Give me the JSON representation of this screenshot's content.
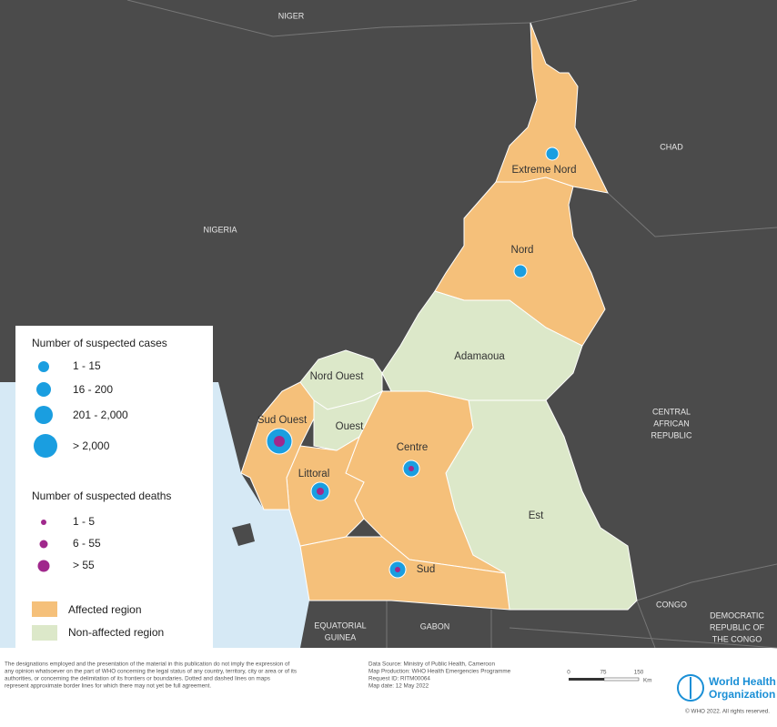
{
  "countries": {
    "niger": "NIGER",
    "chad": "CHAD",
    "nigeria": "NIGERIA",
    "car": [
      "CENTRAL",
      "AFRICAN",
      "REPUBLIC"
    ],
    "congo": "CONGO",
    "drc": [
      "DEMOCRATIC",
      "REPUBLIC OF",
      "THE CONGO"
    ],
    "eq_guinea": [
      "EQUATORIAL",
      "GUINEA"
    ],
    "gabon": "GABON"
  },
  "regions": {
    "extreme_nord": "Extreme Nord",
    "nord": "Nord",
    "adamaoua": "Adamaoua",
    "nord_ouest": "Nord Ouest",
    "ouest": "Ouest",
    "sud_ouest": "Sud Ouest",
    "littoral": "Littoral",
    "centre": "Centre",
    "est": "Est",
    "sud": "Sud"
  },
  "legend": {
    "cases_title": "Number of suspected cases",
    "cases": [
      "1 - 15",
      "16 - 200",
      "201 - 2,000",
      "> 2,000"
    ],
    "deaths_title": "Number of suspected deaths",
    "deaths": [
      "1 - 5",
      "6 - 55",
      "> 55"
    ],
    "affected": "Affected region",
    "non_affected": "Non-affected region"
  },
  "footer": {
    "disclaimer": [
      "The designations employed and the presentation of the material in this publication do not imply the expression of",
      "any opinion whatsoever on the part of WHO concerning the legal status of any country, territory, city or area or of its",
      "authorities, or concerning the delimitation of its frontiers or boundaries. Dotted and dashed lines on maps",
      "represent approximate border lines for which there may not yet be full agreement."
    ],
    "source": [
      "Data Source: Ministry of Public Health, Cameroon",
      "Map Production: WHO Health Emergencies Programme",
      "Request ID: RITM00064",
      "Map date: 12 May 2022"
    ],
    "scale": [
      "0",
      "75",
      "150",
      "Km"
    ],
    "who": [
      "World Health",
      "Organization"
    ],
    "copyright": "© WHO 2022. All rights reserved."
  }
}
